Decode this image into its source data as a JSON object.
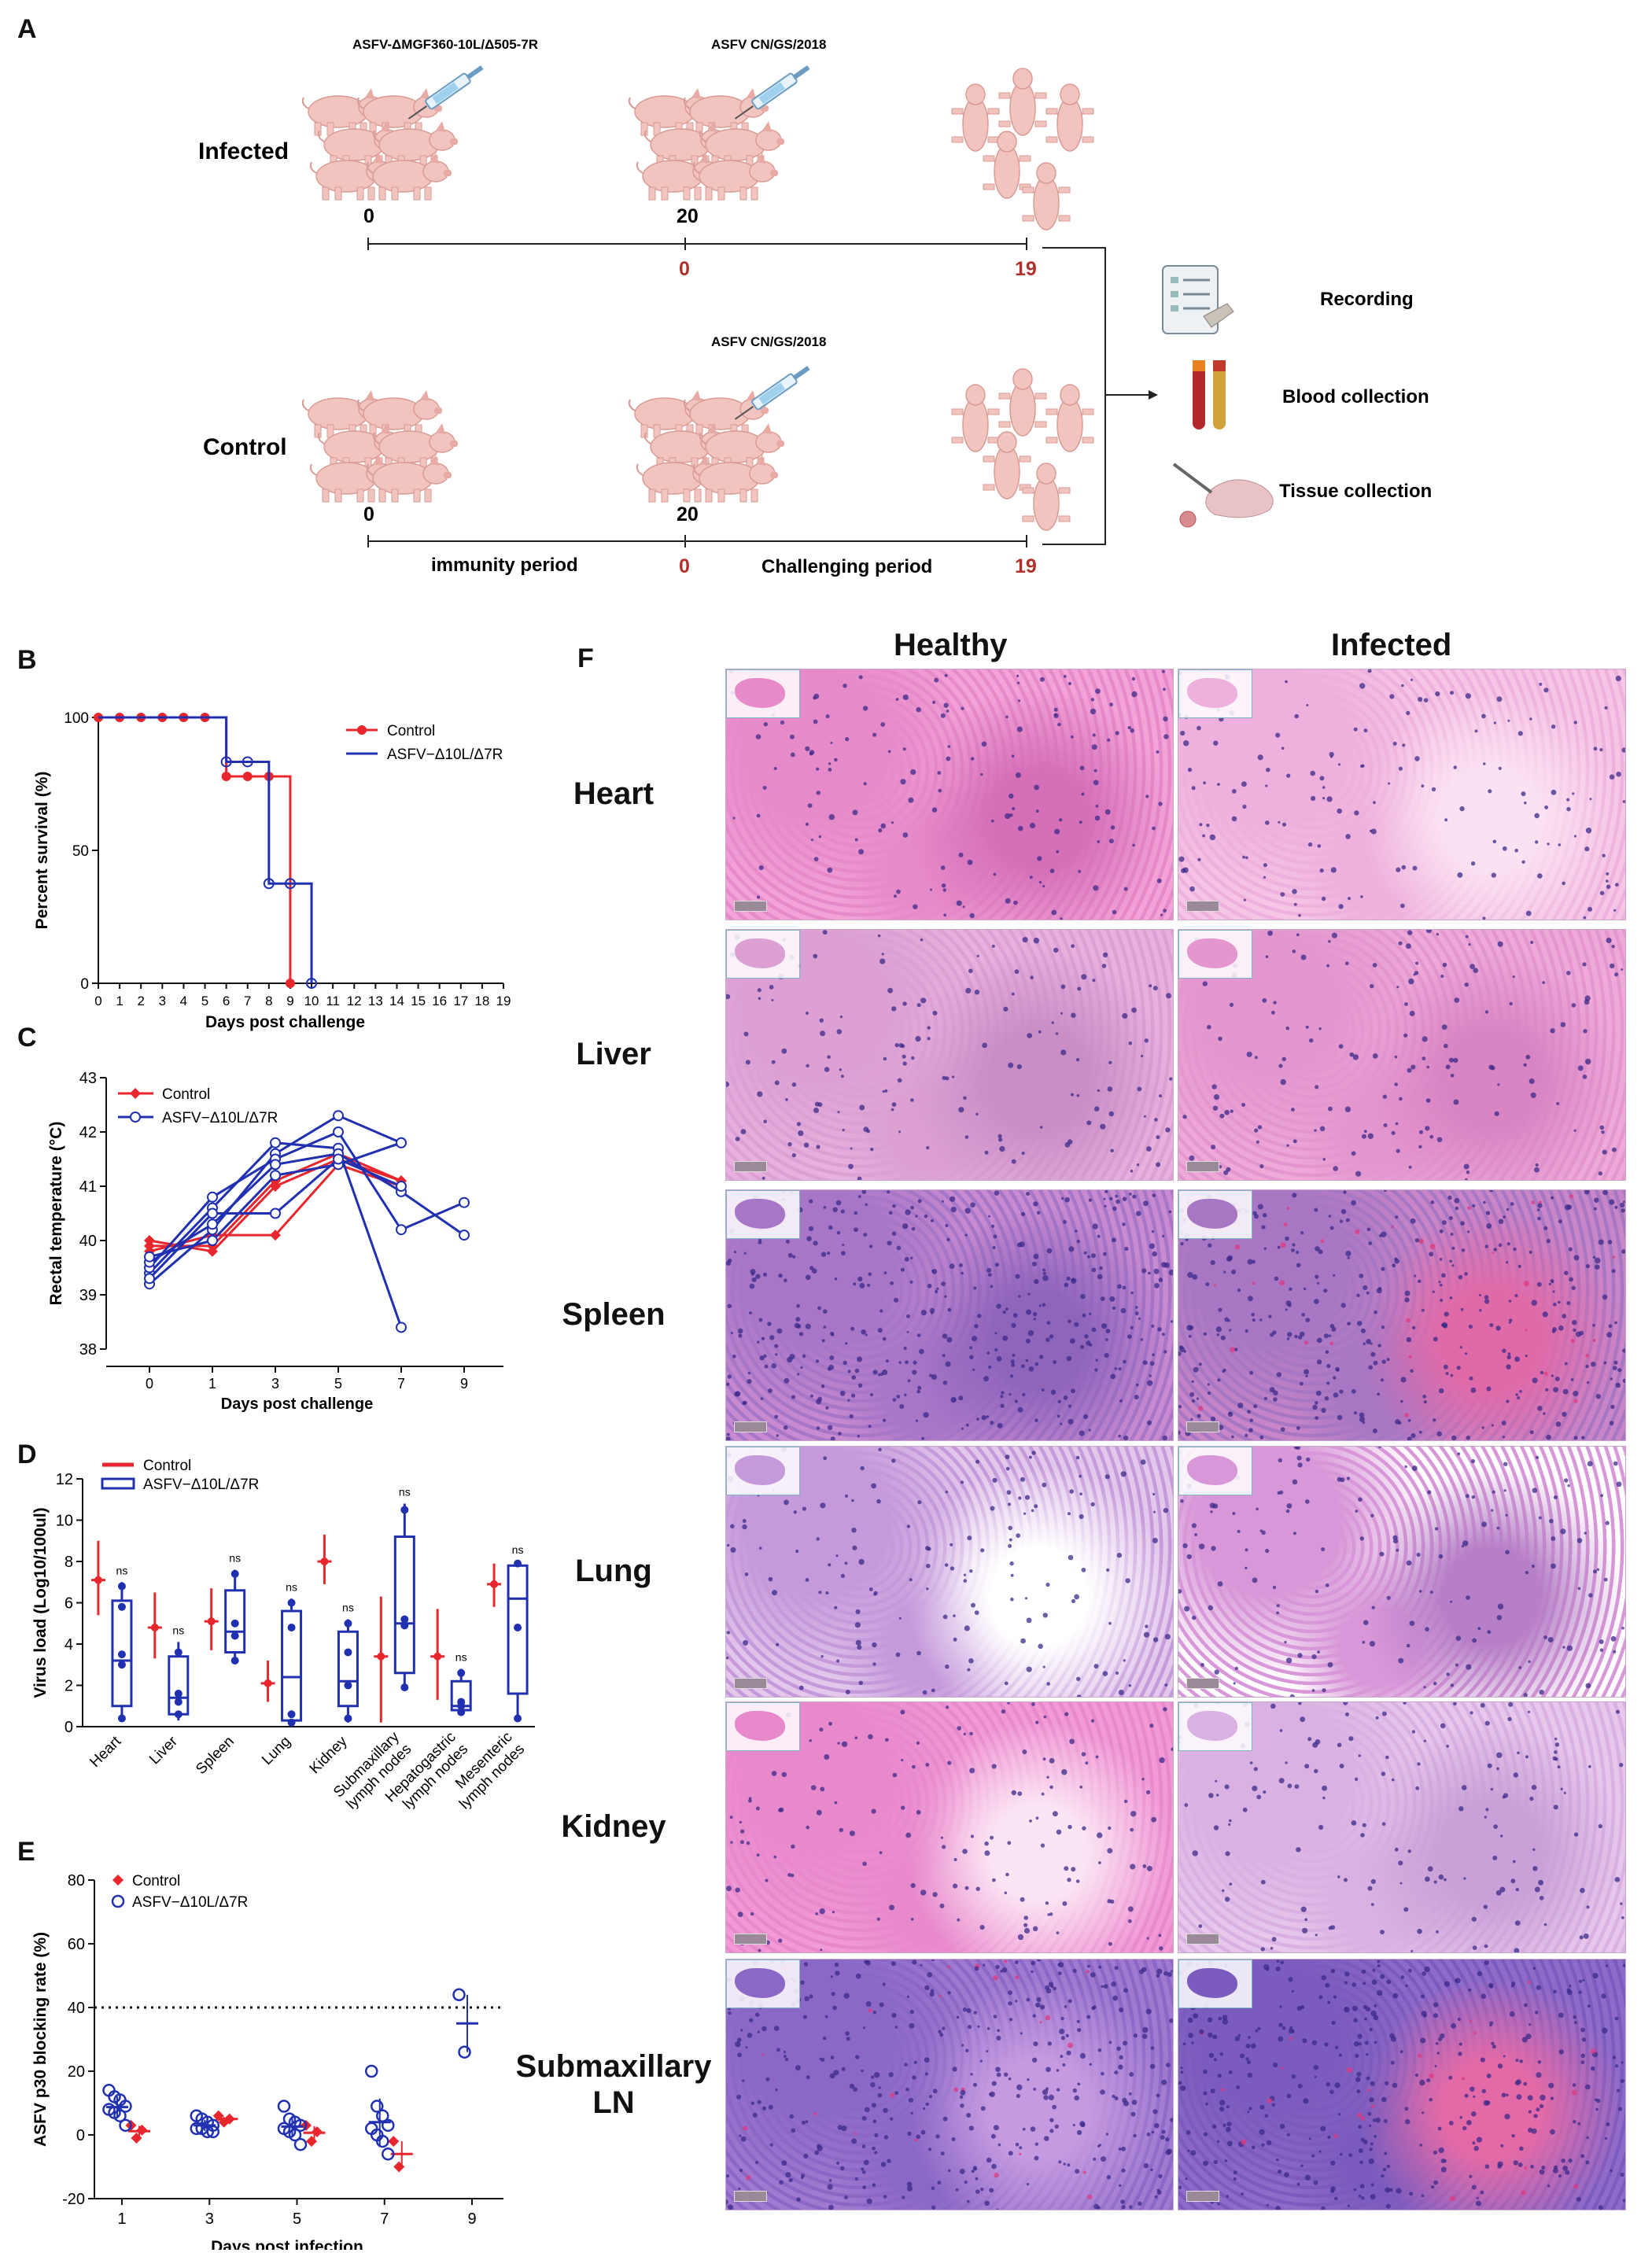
{
  "panels": {
    "A": "A",
    "B": "B",
    "C": "C",
    "D": "D",
    "E": "E",
    "F": "F"
  },
  "schematic": {
    "infected_label": "Infected",
    "control_label": "Control",
    "vaccine_label": "ASFV-ΔMGF360-10L/Δ505-7R",
    "challenge_label_top": "ASFV CN/GS/2018",
    "challenge_label_bottom": "ASFV CN/GS/2018",
    "inf_day0": "0",
    "inf_day20": "20",
    "inf_c0": "0",
    "inf_c19": "19",
    "ctl_day0": "0",
    "ctl_day20": "20",
    "ctl_c0": "0",
    "ctl_c19": "19",
    "immunity_period": "immunity period",
    "challenging_period": "Challenging period",
    "recording": "Recording",
    "blood_collection": "Blood collection",
    "tissue_collection": "Tissue collection",
    "accent_red": "#b0312b",
    "pig_color": "#f2c4bf"
  },
  "chart_data": [
    {
      "id": "B",
      "type": "line",
      "ylabel": "Percent survival (%)",
      "xlabel": "Days post challenge",
      "xlim": [
        0,
        19
      ],
      "ylim": [
        0,
        100
      ],
      "yticks": [
        "0",
        "50",
        "100"
      ],
      "xticks": [
        "0",
        "1",
        "2",
        "3",
        "4",
        "5",
        "6",
        "7",
        "8",
        "9",
        "10",
        "11",
        "12",
        "13",
        "14",
        "15",
        "16",
        "17",
        "18",
        "19"
      ],
      "legend": [
        "Control",
        "ASFV−Δ10L/Δ7R"
      ],
      "series": [
        {
          "name": "Control",
          "color": "#e8262d",
          "step_points": [
            [
              0,
              100
            ],
            [
              6,
              100
            ],
            [
              6,
              77.8
            ],
            [
              9,
              77.8
            ],
            [
              9,
              0
            ]
          ],
          "markers": [
            [
              0,
              100
            ],
            [
              1,
              100
            ],
            [
              2,
              100
            ],
            [
              3,
              100
            ],
            [
              4,
              100
            ],
            [
              5,
              100
            ],
            [
              6,
              77.8
            ],
            [
              7,
              77.8
            ],
            [
              8,
              77.8
            ],
            [
              9,
              0
            ]
          ]
        },
        {
          "name": "ASFV−Δ10L/Δ7R",
          "color": "#2030b0",
          "step_points": [
            [
              0,
              100
            ],
            [
              6,
              100
            ],
            [
              6,
              83.3
            ],
            [
              8,
              83.3
            ],
            [
              8,
              37.5
            ],
            [
              10,
              37.5
            ],
            [
              10,
              0
            ]
          ],
          "markers": [
            [
              6,
              83.3
            ],
            [
              7,
              83.3
            ],
            [
              8,
              37.5
            ],
            [
              9,
              37.5
            ],
            [
              10,
              0
            ]
          ]
        }
      ]
    },
    {
      "id": "C",
      "type": "line",
      "ylabel": "Rectal temperature (°C)",
      "xlabel": "Days post challenge",
      "xticks": [
        "0",
        "1",
        "3",
        "5",
        "7",
        "9"
      ],
      "ylim": [
        38,
        43
      ],
      "yticks": [
        "38",
        "39",
        "40",
        "41",
        "42",
        "43"
      ],
      "legend": [
        "Control",
        "ASFV−Δ10L/Δ7R"
      ],
      "series": [
        {
          "name": "Control",
          "color": "#e8262d",
          "lines": [
            [
              40.0,
              39.8,
              41.0,
              41.5,
              41.1
            ],
            [
              39.9,
              39.9,
              41.1,
              41.6,
              41.1
            ],
            [
              39.8,
              40.1,
              40.1,
              41.4,
              41.0
            ]
          ]
        },
        {
          "name": "ASFV−Δ10L/Δ7R",
          "color": "#2030b0",
          "lines": [
            [
              39.2,
              40.2,
              41.6,
              42.3,
              41.8
            ],
            [
              39.4,
              40.6,
              41.8,
              41.7,
              38.4
            ],
            [
              39.5,
              40.8,
              41.5,
              42.0,
              40.2,
              40.7
            ],
            [
              39.6,
              40.3,
              41.4,
              41.6,
              40.9,
              40.1
            ],
            [
              39.7,
              40.0,
              41.2,
              41.4,
              41.8
            ],
            [
              39.3,
              40.5,
              40.5,
              41.5,
              41.0
            ]
          ]
        }
      ]
    },
    {
      "id": "D",
      "type": "box",
      "ylabel": "Virus load (Log10/100ul)",
      "ylim": [
        0,
        12
      ],
      "yticks": [
        "0",
        "2",
        "4",
        "6",
        "8",
        "10",
        "12"
      ],
      "legend": [
        "Control",
        "ASFV−Δ10L/Δ7R"
      ],
      "categories": [
        "Heart",
        "Liver",
        "Spleen",
        "Lung",
        "Kidney",
        "Submaxillary lymph nodes",
        "Hepatogastric lymph nodes",
        "Mesenteric lymph nodes"
      ],
      "sig": [
        "ns",
        "ns",
        "ns",
        "ns",
        "ns",
        "ns",
        "ns",
        "ns"
      ],
      "control": [
        {
          "mean": 7.1,
          "min": 5.4,
          "max": 9.0
        },
        {
          "mean": 4.8,
          "min": 3.3,
          "max": 6.5
        },
        {
          "mean": 5.1,
          "min": 3.7,
          "max": 6.7
        },
        {
          "mean": 2.1,
          "min": 1.2,
          "max": 3.2
        },
        {
          "mean": 8.0,
          "min": 6.9,
          "max": 9.3
        },
        {
          "mean": 3.4,
          "min": 0.2,
          "max": 6.3
        },
        {
          "mean": 3.4,
          "min": 1.3,
          "max": 5.7
        },
        {
          "mean": 6.9,
          "min": 5.8,
          "max": 7.9
        }
      ],
      "treated": [
        {
          "min": 0.3,
          "q1": 1.0,
          "med": 3.2,
          "q3": 6.1,
          "max": 7.0,
          "pts": [
            0.4,
            3.0,
            3.5,
            5.8,
            6.8
          ]
        },
        {
          "min": 0.3,
          "q1": 0.6,
          "med": 1.4,
          "q3": 3.4,
          "max": 4.1,
          "pts": [
            0.6,
            1.2,
            1.6,
            3.6
          ]
        },
        {
          "min": 3.1,
          "q1": 3.6,
          "med": 4.6,
          "q3": 6.6,
          "max": 7.6,
          "pts": [
            3.2,
            4.4,
            5.0,
            7.4
          ]
        },
        {
          "min": 0.1,
          "q1": 0.3,
          "med": 2.4,
          "q3": 5.6,
          "max": 6.2,
          "pts": [
            0.2,
            0.6,
            4.8,
            6.0
          ]
        },
        {
          "min": 0.2,
          "q1": 1.0,
          "med": 2.2,
          "q3": 4.6,
          "max": 5.2,
          "pts": [
            0.4,
            2.0,
            3.6,
            5.0
          ]
        },
        {
          "min": 1.8,
          "q1": 2.6,
          "med": 5.0,
          "q3": 9.2,
          "max": 10.8,
          "pts": [
            1.9,
            4.9,
            5.2,
            10.5
          ]
        },
        {
          "min": 0.6,
          "q1": 0.8,
          "med": 1.0,
          "q3": 2.2,
          "max": 2.8,
          "pts": [
            0.7,
            1.0,
            1.2,
            2.6
          ]
        },
        {
          "min": 0.3,
          "q1": 1.6,
          "med": 6.2,
          "q3": 7.8,
          "max": 8.0,
          "pts": [
            0.4,
            4.8,
            7.9
          ]
        }
      ]
    },
    {
      "id": "E",
      "type": "scatter",
      "ylabel": "ASFV p30 blocking rate (%)",
      "xlabel": "Days post infection",
      "ylim": [
        -20,
        80
      ],
      "yticks": [
        "-20",
        "0",
        "20",
        "40",
        "60",
        "80"
      ],
      "xticks": [
        "1",
        "3",
        "5",
        "7",
        "9"
      ],
      "threshold": 40,
      "legend": [
        "Control",
        "ASFV−Δ10L/Δ7R"
      ],
      "series": [
        {
          "name": "Control",
          "color": "#e8262d",
          "groups": [
            {
              "day": 1,
              "vals": [
                3,
                -1,
                1.5
              ]
            },
            {
              "day": 3,
              "vals": [
                6,
                4,
                5
              ]
            },
            {
              "day": 5,
              "vals": [
                3,
                -2,
                1
              ]
            },
            {
              "day": 7,
              "vals": [
                -2,
                -10
              ]
            }
          ]
        },
        {
          "name": "ASFV−Δ10L/Δ7R",
          "color": "#2030b0",
          "groups": [
            {
              "day": 1,
              "vals": [
                14,
                12,
                11,
                9,
                8,
                7,
                6,
                3
              ]
            },
            {
              "day": 3,
              "vals": [
                6,
                5,
                4,
                3,
                2,
                2,
                1,
                1
              ]
            },
            {
              "day": 5,
              "vals": [
                9,
                5,
                4,
                3,
                2,
                1,
                0,
                -3
              ]
            },
            {
              "day": 7,
              "vals": [
                20,
                9,
                6,
                3,
                2,
                0,
                -2,
                -6
              ]
            },
            {
              "day": 9,
              "vals": [
                44,
                26
              ]
            }
          ]
        }
      ]
    }
  ],
  "histology": {
    "col_healthy": "Healthy",
    "col_infected": "Infected",
    "rows": [
      "Heart",
      "Liver",
      "Spleen",
      "Lung",
      "Kidney",
      "Submaxillary\nLN"
    ]
  }
}
